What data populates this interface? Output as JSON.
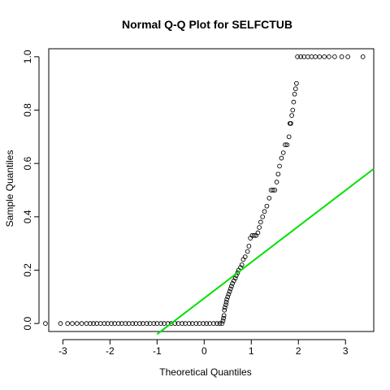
{
  "chart_data": {
    "type": "scatter",
    "title": "Normal Q-Q Plot for SELFCTUB",
    "xlabel": "Theoretical Quantiles",
    "ylabel": "Sample Quantiles",
    "xlim": [
      -3.3,
      3.6
    ],
    "ylim": [
      -0.03,
      1.03
    ],
    "x_ticks": [
      -3,
      -2,
      -1,
      0,
      1,
      2,
      3
    ],
    "y_ticks": [
      0.0,
      0.2,
      0.4,
      0.6,
      0.8,
      1.0
    ],
    "x_tick_labels": [
      "-3",
      "-2",
      "-1",
      "0",
      "1",
      "2",
      "3"
    ],
    "y_tick_labels": [
      "0.0",
      "0.2",
      "0.4",
      "0.6",
      "0.8",
      "1.0"
    ],
    "grid": false,
    "marker": "open-circle",
    "series": [
      {
        "points": [
          [
            -3.37,
            0.0
          ],
          [
            -3.05,
            0.0
          ],
          [
            -2.9,
            0.0
          ],
          [
            -2.8,
            0.0
          ],
          [
            -2.7,
            0.0
          ],
          [
            -2.6,
            0.0
          ],
          [
            -2.5,
            0.0
          ],
          [
            -2.42,
            0.0
          ],
          [
            -2.35,
            0.0
          ],
          [
            -2.28,
            0.0
          ],
          [
            -2.2,
            0.0
          ],
          [
            -2.12,
            0.0
          ],
          [
            -2.05,
            0.0
          ],
          [
            -1.97,
            0.0
          ],
          [
            -1.9,
            0.0
          ],
          [
            -1.82,
            0.0
          ],
          [
            -1.75,
            0.0
          ],
          [
            -1.67,
            0.0
          ],
          [
            -1.6,
            0.0
          ],
          [
            -1.52,
            0.0
          ],
          [
            -1.45,
            0.0
          ],
          [
            -1.37,
            0.0
          ],
          [
            -1.3,
            0.0
          ],
          [
            -1.22,
            0.0
          ],
          [
            -1.15,
            0.0
          ],
          [
            -1.07,
            0.0
          ],
          [
            -1.0,
            0.0
          ],
          [
            -0.92,
            0.0
          ],
          [
            -0.85,
            0.0
          ],
          [
            -0.77,
            0.0
          ],
          [
            -0.7,
            0.0
          ],
          [
            -0.62,
            0.0
          ],
          [
            -0.55,
            0.0
          ],
          [
            -0.47,
            0.0
          ],
          [
            -0.4,
            0.0
          ],
          [
            -0.32,
            0.0
          ],
          [
            -0.25,
            0.0
          ],
          [
            -0.17,
            0.0
          ],
          [
            -0.1,
            0.0
          ],
          [
            -0.02,
            0.0
          ],
          [
            0.05,
            0.0
          ],
          [
            0.12,
            0.0
          ],
          [
            0.2,
            0.0
          ],
          [
            0.27,
            0.0
          ],
          [
            0.33,
            0.0
          ],
          [
            0.38,
            0.0
          ],
          [
            0.4,
            0.01
          ],
          [
            0.41,
            0.02
          ],
          [
            0.42,
            0.03
          ],
          [
            0.43,
            0.05
          ],
          [
            0.44,
            0.06
          ],
          [
            0.46,
            0.07
          ],
          [
            0.47,
            0.08
          ],
          [
            0.48,
            0.09
          ],
          [
            0.5,
            0.1
          ],
          [
            0.52,
            0.11
          ],
          [
            0.54,
            0.12
          ],
          [
            0.56,
            0.13
          ],
          [
            0.58,
            0.14
          ],
          [
            0.6,
            0.15
          ],
          [
            0.63,
            0.16
          ],
          [
            0.66,
            0.17
          ],
          [
            0.68,
            0.18
          ],
          [
            0.71,
            0.19
          ],
          [
            0.73,
            0.2
          ],
          [
            0.77,
            0.21
          ],
          [
            0.8,
            0.22
          ],
          [
            0.83,
            0.24
          ],
          [
            0.87,
            0.25
          ],
          [
            0.92,
            0.27
          ],
          [
            0.95,
            0.29
          ],
          [
            0.98,
            0.32
          ],
          [
            1.02,
            0.33
          ],
          [
            1.06,
            0.33
          ],
          [
            1.1,
            0.33
          ],
          [
            1.14,
            0.34
          ],
          [
            1.17,
            0.36
          ],
          [
            1.2,
            0.38
          ],
          [
            1.24,
            0.4
          ],
          [
            1.28,
            0.42
          ],
          [
            1.33,
            0.44
          ],
          [
            1.38,
            0.47
          ],
          [
            1.42,
            0.5
          ],
          [
            1.46,
            0.5
          ],
          [
            1.5,
            0.5
          ],
          [
            1.54,
            0.53
          ],
          [
            1.57,
            0.56
          ],
          [
            1.6,
            0.59
          ],
          [
            1.64,
            0.62
          ],
          [
            1.68,
            0.64
          ],
          [
            1.72,
            0.67
          ],
          [
            1.76,
            0.67
          ],
          [
            1.8,
            0.7
          ],
          [
            1.82,
            0.75
          ],
          [
            1.84,
            0.75
          ],
          [
            1.86,
            0.78
          ],
          [
            1.88,
            0.8
          ],
          [
            1.9,
            0.83
          ],
          [
            1.92,
            0.86
          ],
          [
            1.94,
            0.88
          ],
          [
            1.96,
            0.9
          ],
          [
            1.98,
            1.0
          ],
          [
            2.05,
            1.0
          ],
          [
            2.12,
            1.0
          ],
          [
            2.2,
            1.0
          ],
          [
            2.28,
            1.0
          ],
          [
            2.36,
            1.0
          ],
          [
            2.45,
            1.0
          ],
          [
            2.55,
            1.0
          ],
          [
            2.65,
            1.0
          ],
          [
            2.77,
            1.0
          ],
          [
            2.92,
            1.0
          ],
          [
            3.05,
            1.0
          ],
          [
            3.37,
            1.0
          ]
        ]
      }
    ],
    "reference_line": {
      "color": "#00e000",
      "points": [
        [
          -1.0,
          -0.04
        ],
        [
          3.6,
          0.58
        ]
      ]
    }
  }
}
